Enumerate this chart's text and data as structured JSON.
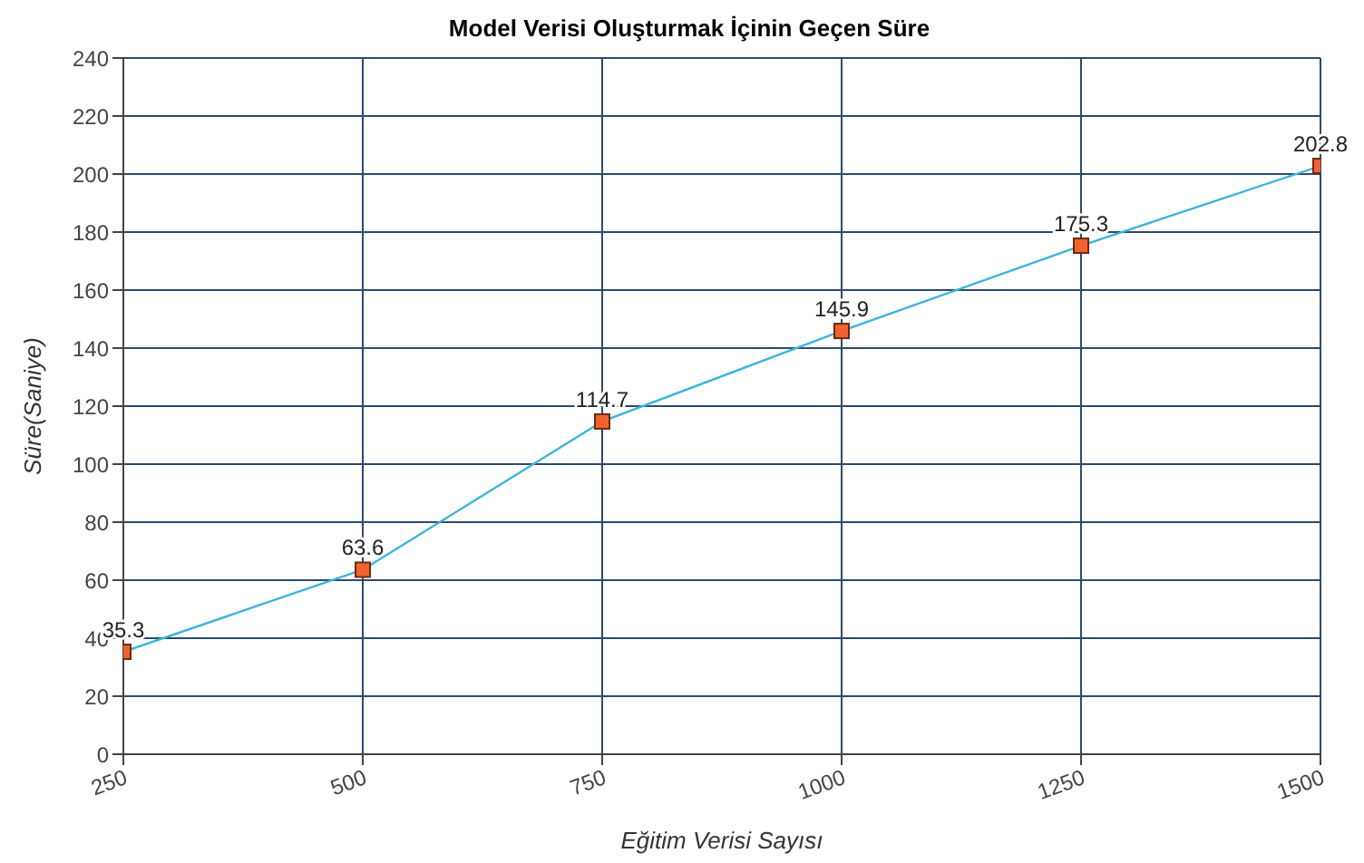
{
  "chart_data": {
    "type": "line",
    "title": "Model Verisi Oluşturmak İçinin Geçen Süre",
    "xlabel": "Eğitim Verisi Sayısı",
    "ylabel": "Süre(Saniye)",
    "x": [
      250,
      500,
      750,
      1000,
      1250,
      1500
    ],
    "series": [
      {
        "color": "#3cb4dc",
        "values": [
          35.3,
          63.6,
          114.7,
          145.9,
          175.3,
          202.8
        ]
      }
    ],
    "xlim": [
      250,
      1500
    ],
    "xticks": [
      250,
      500,
      750,
      1000,
      1250,
      1500
    ],
    "ylim": [
      0,
      240
    ],
    "yticks": [
      0,
      20,
      40,
      60,
      80,
      100,
      120,
      140,
      160,
      180,
      200,
      220,
      240
    ],
    "grid": true,
    "marker": "square",
    "line_style": "solid",
    "data_labels": true,
    "legend": false
  }
}
